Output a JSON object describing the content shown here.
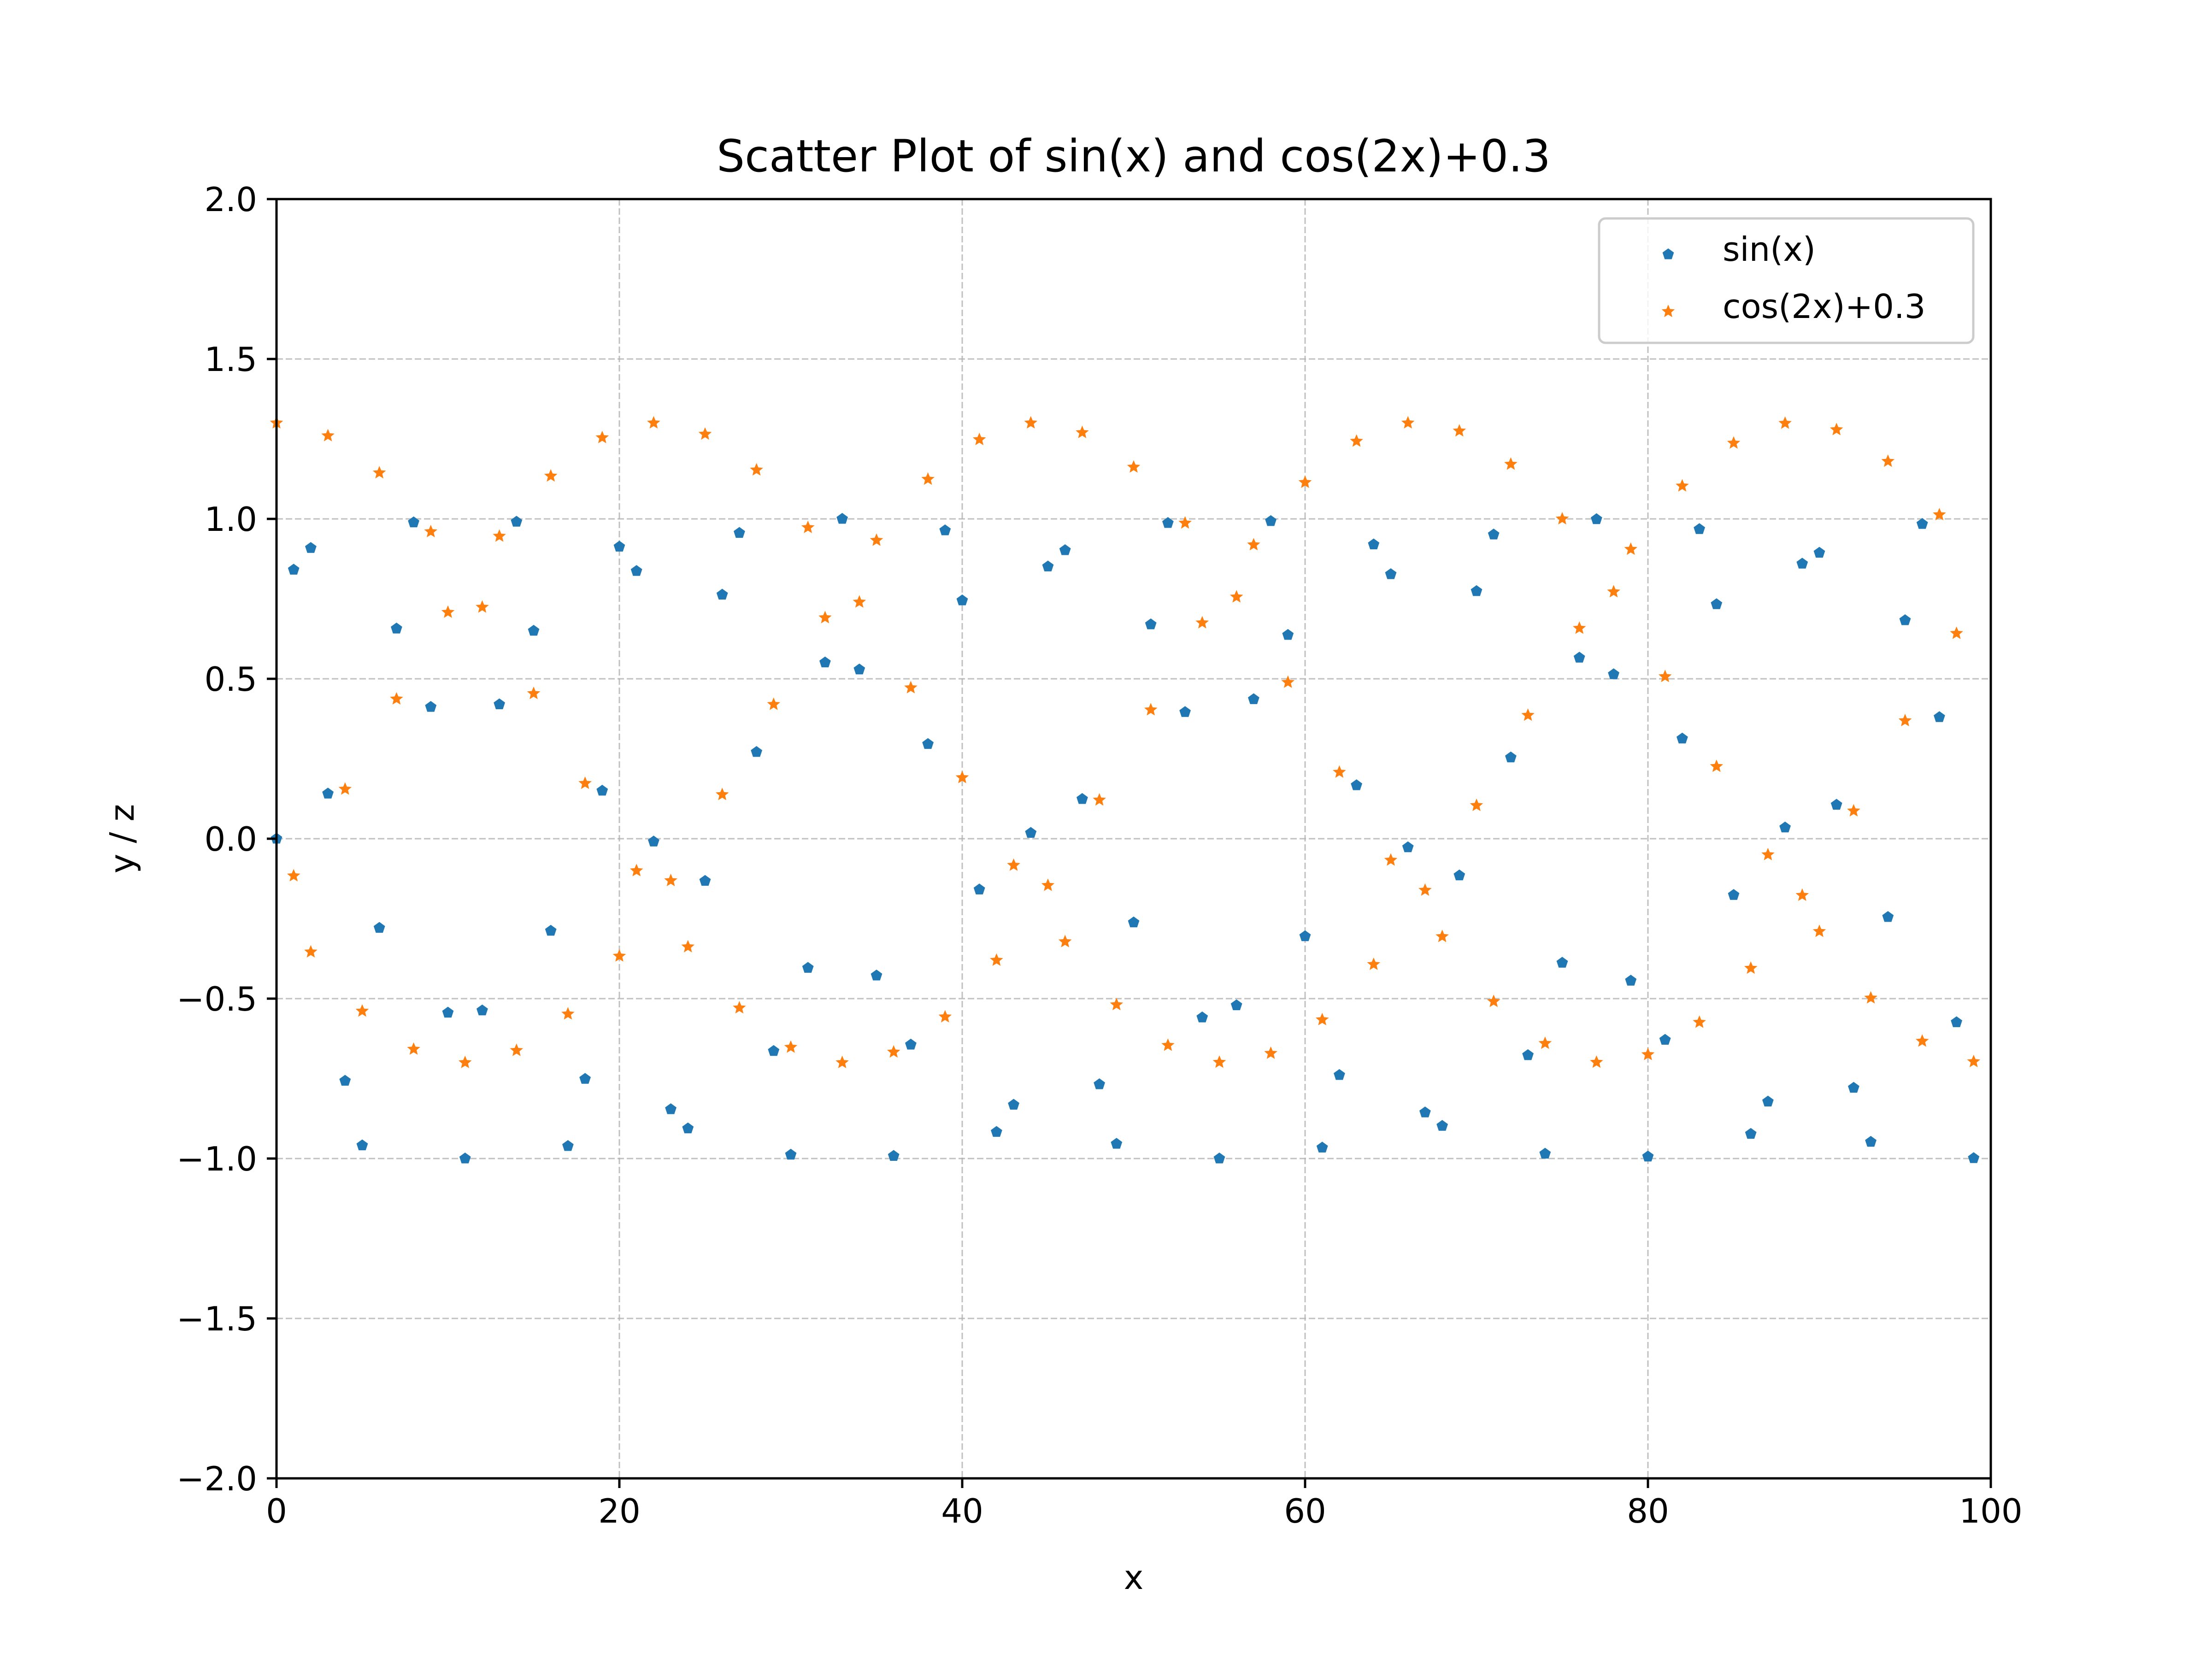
{
  "chart_data": {
    "type": "scatter",
    "title": "Scatter Plot of sin(x) and cos(2x)+0.3",
    "xlabel": "x",
    "ylabel": "y / z",
    "xlim": [
      0,
      100
    ],
    "ylim": [
      -2.0,
      2.0
    ],
    "x_ticks": [
      "0",
      "20",
      "40",
      "60",
      "80",
      "100"
    ],
    "x_tick_values": [
      0,
      20,
      40,
      60,
      80,
      100
    ],
    "y_ticks": [
      "2.0",
      "1.5",
      "1.0",
      "0.5",
      "0.0",
      "−0.5",
      "−1.0",
      "−1.5",
      "−2.0"
    ],
    "y_tick_values": [
      2.0,
      1.5,
      1.0,
      0.5,
      0.0,
      -0.5,
      -1.0,
      -1.5,
      -2.0
    ],
    "grid": true,
    "legend_position": "top-right",
    "series": [
      {
        "name": "sin(x)",
        "color": "#1f77b4",
        "marker": "pentagon",
        "x": [
          0,
          1,
          2,
          3,
          4,
          5,
          6,
          7,
          8,
          9,
          10,
          11,
          12,
          13,
          14,
          15,
          16,
          17,
          18,
          19,
          20,
          21,
          22,
          23,
          24,
          25,
          26,
          27,
          28,
          29,
          30,
          31,
          32,
          33,
          34,
          35,
          36,
          37,
          38,
          39,
          40,
          41,
          42,
          43,
          44,
          45,
          46,
          47,
          48,
          49,
          50,
          51,
          52,
          53,
          54,
          55,
          56,
          57,
          58,
          59,
          60,
          61,
          62,
          63,
          64,
          65,
          66,
          67,
          68,
          69,
          70,
          71,
          72,
          73,
          74,
          75,
          76,
          77,
          78,
          79,
          80,
          81,
          82,
          83,
          84,
          85,
          86,
          87,
          88,
          89,
          90,
          91,
          92,
          93,
          94,
          95,
          96,
          97,
          98,
          99
        ],
        "y": [
          0.0,
          0.841,
          0.909,
          0.141,
          -0.757,
          -0.959,
          -0.279,
          0.657,
          0.989,
          0.412,
          -0.544,
          -1.0,
          -0.537,
          0.42,
          0.991,
          0.65,
          -0.288,
          -0.961,
          -0.751,
          0.15,
          0.913,
          0.837,
          -0.009,
          -0.846,
          -0.906,
          -0.132,
          0.763,
          0.956,
          0.271,
          -0.664,
          -0.988,
          -0.404,
          0.551,
          1.0,
          0.529,
          -0.428,
          -0.992,
          -0.644,
          0.296,
          0.964,
          0.745,
          -0.159,
          -0.917,
          -0.832,
          0.018,
          0.851,
          0.902,
          0.124,
          -0.768,
          -0.954,
          -0.262,
          0.67,
          0.987,
          0.396,
          -0.559,
          -1.0,
          -0.521,
          0.436,
          0.993,
          0.637,
          -0.305,
          -0.966,
          -0.739,
          0.167,
          0.92,
          0.827,
          -0.027,
          -0.856,
          -0.898,
          -0.115,
          0.774,
          0.951,
          0.254,
          -0.677,
          -0.985,
          -0.388,
          0.566,
          0.999,
          0.514,
          -0.444,
          -0.994,
          -0.629,
          0.313,
          0.968,
          0.733,
          -0.176,
          -0.923,
          -0.822,
          0.035,
          0.86,
          0.894,
          0.106,
          -0.779,
          -0.948,
          -0.245,
          0.683,
          0.984,
          0.38,
          -0.574,
          -0.999
        ]
      },
      {
        "name": "cos(2x)+0.3",
        "color": "#ff7f0e",
        "marker": "star",
        "x": [
          0,
          1,
          2,
          3,
          4,
          5,
          6,
          7,
          8,
          9,
          10,
          11,
          12,
          13,
          14,
          15,
          16,
          17,
          18,
          19,
          20,
          21,
          22,
          23,
          24,
          25,
          26,
          27,
          28,
          29,
          30,
          31,
          32,
          33,
          34,
          35,
          36,
          37,
          38,
          39,
          40,
          41,
          42,
          43,
          44,
          45,
          46,
          47,
          48,
          49,
          50,
          51,
          52,
          53,
          54,
          55,
          56,
          57,
          58,
          59,
          60,
          61,
          62,
          63,
          64,
          65,
          66,
          67,
          68,
          69,
          70,
          71,
          72,
          73,
          74,
          75,
          76,
          77,
          78,
          79,
          80,
          81,
          82,
          83,
          84,
          85,
          86,
          87,
          88,
          89,
          90,
          91,
          92,
          93,
          94,
          95,
          96,
          97,
          98,
          99
        ],
        "y": [
          1.3,
          -0.116,
          -0.354,
          1.26,
          0.155,
          -0.539,
          1.144,
          0.437,
          -0.658,
          0.96,
          0.708,
          -0.7,
          0.724,
          0.946,
          -0.662,
          0.454,
          1.134,
          -0.548,
          0.173,
          1.254,
          -0.367,
          -0.1,
          1.3,
          -0.131,
          -0.338,
          1.265,
          0.138,
          -0.529,
          1.153,
          0.42,
          -0.652,
          0.973,
          0.691,
          -0.7,
          0.74,
          0.933,
          -0.667,
          0.472,
          1.124,
          -0.557,
          0.191,
          1.248,
          -0.38,
          -0.083,
          1.3,
          -0.146,
          -0.322,
          1.27,
          0.121,
          -0.519,
          1.162,
          0.403,
          -0.646,
          0.987,
          0.675,
          -0.699,
          0.756,
          0.919,
          -0.671,
          0.489,
          1.114,
          -0.566,
          0.208,
          1.243,
          -0.393,
          -0.067,
          1.3,
          -0.161,
          -0.306,
          1.275,
          0.104,
          -0.509,
          1.171,
          0.386,
          -0.64,
          1.0,
          0.658,
          -0.699,
          0.772,
          0.905,
          -0.675,
          0.507,
          1.103,
          -0.574,
          0.226,
          1.237,
          -0.405,
          -0.05,
          1.299,
          -0.177,
          -0.29,
          1.279,
          0.087,
          -0.498,
          1.18,
          0.369,
          -0.633,
          1.013,
          0.642,
          -0.697
        ]
      }
    ]
  }
}
